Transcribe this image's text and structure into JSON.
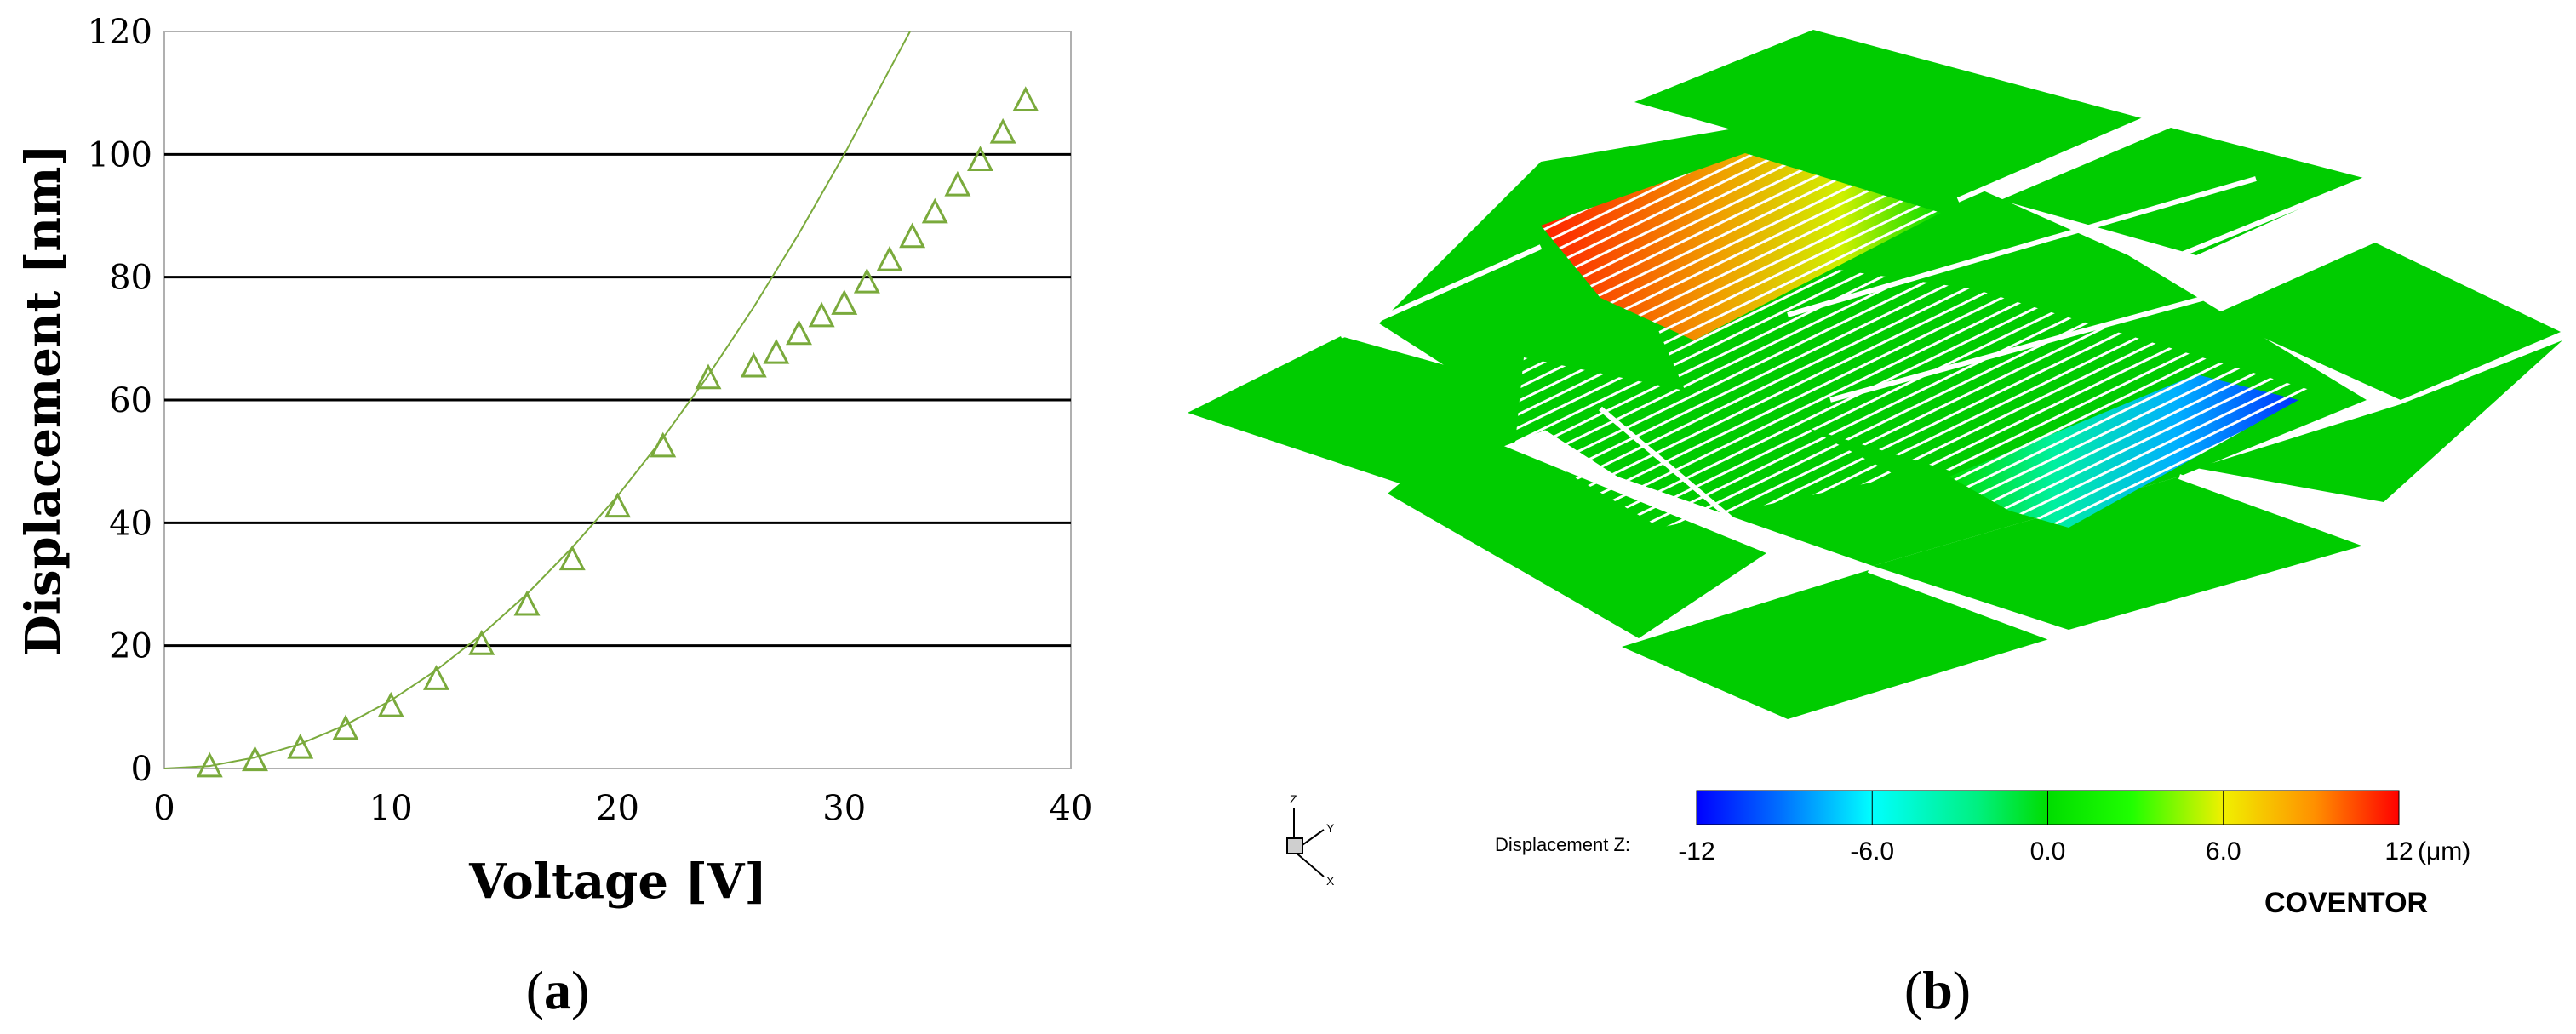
{
  "chart_data": [
    {
      "type": "scatter",
      "panel_label": "a",
      "xlabel": "Voltage [V]",
      "ylabel": "Displacement [nm]",
      "xlim": [
        0,
        40
      ],
      "ylim": [
        0,
        120
      ],
      "xticks": [
        0,
        10,
        20,
        30,
        40
      ],
      "yticks": [
        0,
        20,
        40,
        60,
        80,
        100,
        120
      ],
      "grid": "horizontal",
      "colors": {
        "marker": "#7aaa3c",
        "line": "#7aaa3c",
        "grid": "#000000"
      },
      "series": [
        {
          "marker": "triangle",
          "x": [
            2,
            4,
            6,
            8,
            10,
            12,
            14,
            16,
            18,
            20,
            22,
            24,
            26,
            27,
            28,
            29,
            30,
            31,
            32,
            33,
            34,
            35,
            36,
            37,
            38
          ],
          "y": [
            0.3,
            1.3,
            3.3,
            6.4,
            10.1,
            14.5,
            20.2,
            26.6,
            34.0,
            42.6,
            52.4,
            63.5,
            65.4,
            67.6,
            70.7,
            73.6,
            75.6,
            79.1,
            82.7,
            86.5,
            90.5,
            94.9,
            99.0,
            103.5,
            108.7
          ]
        },
        {
          "style": "line",
          "x": [
            0,
            2,
            4,
            6,
            8,
            10,
            12,
            14,
            16,
            18,
            20,
            22,
            24,
            26,
            28,
            30,
            32,
            32.9
          ],
          "y": [
            0,
            0.4,
            1.8,
            4.0,
            7.1,
            11.1,
            16.0,
            21.8,
            28.4,
            36.0,
            44.4,
            53.8,
            64.0,
            75.1,
            87.1,
            100.0,
            113.8,
            120.0
          ]
        }
      ]
    },
    {
      "type": "heatmap",
      "panel_label": "b",
      "colorbar": {
        "label": "Displacement Z:",
        "ticks": [
          "-12",
          "-6.0",
          "0.0",
          "6.0",
          "12"
        ],
        "unit": "(μm)",
        "range": [
          -12,
          12
        ],
        "colors": [
          "#0000ff",
          "#00c8ff",
          "#00ffb0",
          "#00e000",
          "#10ff00",
          "#e8ff00",
          "#ffa000",
          "#ff0000"
        ]
      },
      "brand": "COVENTOR",
      "axis_triad": [
        "Z",
        "Y",
        "X"
      ]
    }
  ]
}
